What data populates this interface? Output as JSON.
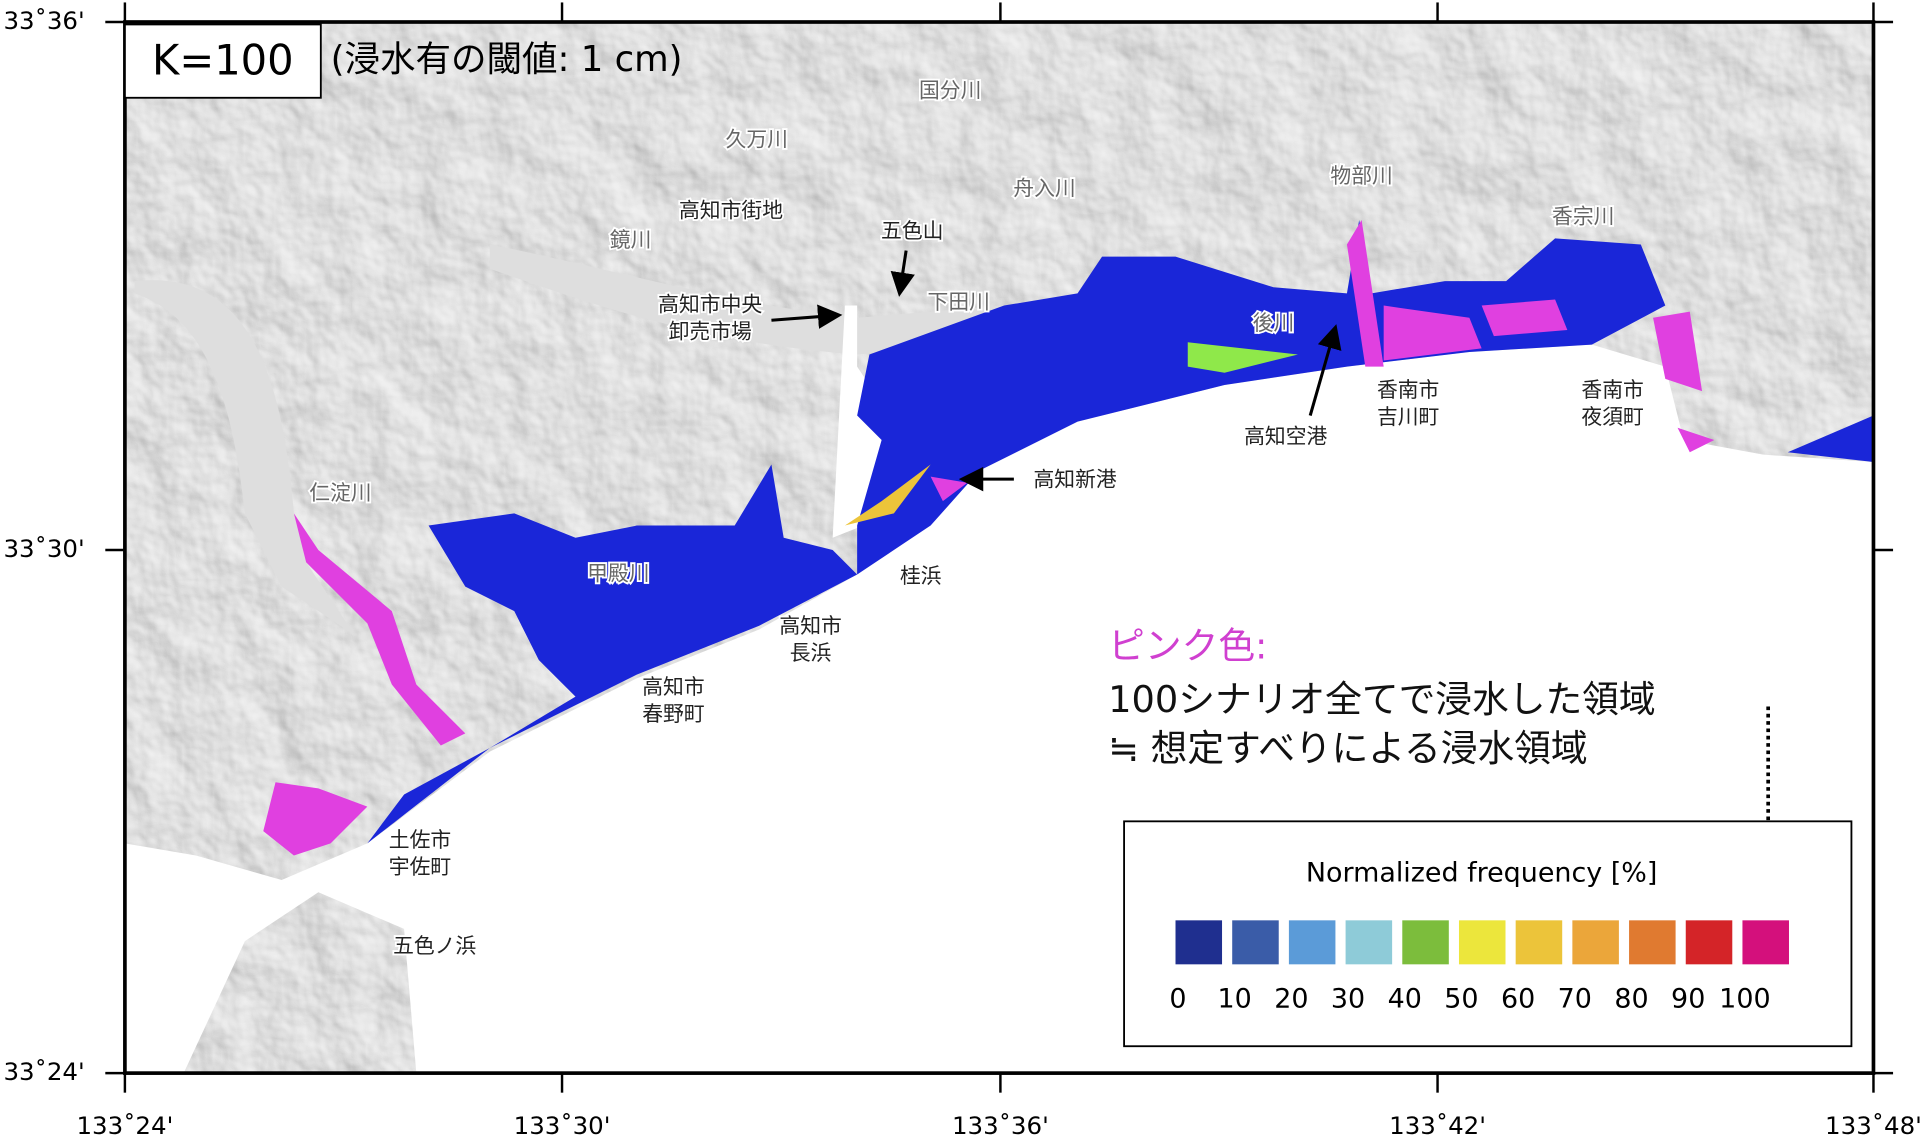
{
  "map": {
    "title": "K=100",
    "subtitle": "(浸水有の閾値: 1 cm)",
    "lat_ticks": [
      "33˚36'",
      "33˚30'",
      "33˚24'"
    ],
    "lon_ticks": [
      "133˚24'",
      "133˚30'",
      "133˚36'",
      "133˚42'",
      "133˚48'"
    ],
    "places": [
      {
        "lines": [
          "国分川"
        ]
      },
      {
        "lines": [
          "久万川"
        ]
      },
      {
        "lines": [
          "舟入川"
        ]
      },
      {
        "lines": [
          "高知市街地"
        ]
      },
      {
        "lines": [
          "鏡川"
        ]
      },
      {
        "lines": [
          "五色山"
        ]
      },
      {
        "lines": [
          "下田川"
        ]
      },
      {
        "lines": [
          "高知市中央",
          "卸売市場"
        ]
      },
      {
        "lines": [
          "物部川"
        ]
      },
      {
        "lines": [
          "香宗川"
        ]
      },
      {
        "lines": [
          "後川"
        ]
      },
      {
        "lines": [
          "香南市",
          "吉川町"
        ]
      },
      {
        "lines": [
          "高知空港"
        ]
      },
      {
        "lines": [
          "香南市",
          "夜須町"
        ]
      },
      {
        "lines": [
          "高知新港"
        ]
      },
      {
        "lines": [
          "仁淀川"
        ]
      },
      {
        "lines": [
          "甲殿川"
        ]
      },
      {
        "lines": [
          "桂浜"
        ]
      },
      {
        "lines": [
          "高知市",
          "長浜"
        ]
      },
      {
        "lines": [
          "高知市",
          "春野町"
        ]
      },
      {
        "lines": [
          "土佐市",
          "宇佐町"
        ]
      },
      {
        "lines": [
          "五色ノ浜"
        ]
      }
    ],
    "annotation": {
      "heading": "ピンク色:",
      "lines": [
        "100シナリオ全てで浸水した領域",
        "≒ 想定すべりによる浸水領域"
      ]
    },
    "legend": {
      "title": "Normalized frequency [%]",
      "labels": [
        "0",
        "10",
        "20",
        "30",
        "40",
        "50",
        "60",
        "70",
        "80",
        "90",
        "100"
      ],
      "colors": [
        "#1f2f8f",
        "#3a5ca8",
        "#5b9bd8",
        "#8ecbd8",
        "#7cbd3c",
        "#ece63c",
        "#ecc43a",
        "#eba63a",
        "#e07a30",
        "#d42428",
        "#d4107c"
      ]
    }
  }
}
